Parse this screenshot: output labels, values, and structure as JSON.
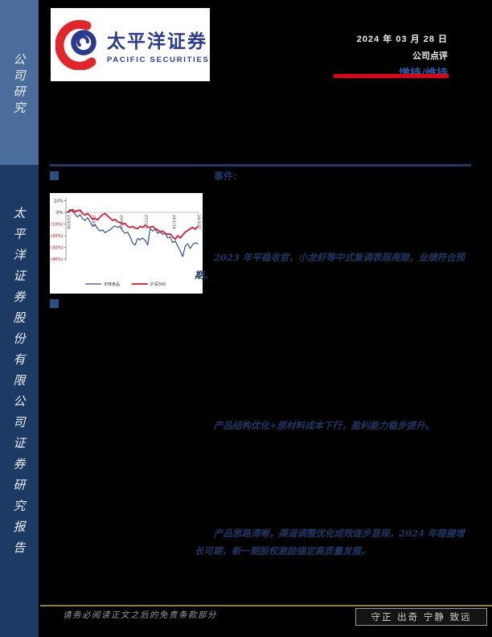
{
  "colors": {
    "red": "#e60012",
    "logoBlue": "#2b3a8e",
    "ratingBlue": "#2a5caa",
    "navy": "#1f3864",
    "bulletBlue": "#2d4f7f",
    "sidebarLight": "#4a6d9d",
    "sidebarDark": "#1c3a63",
    "gold": "#8e7c42",
    "footerGray": "#9c9c9c"
  },
  "sidebar": {
    "top_label": "公司研究",
    "bottom_label": "太平洋证券股份有限公司证券研究报告"
  },
  "logo": {
    "cn": "太平洋证券",
    "en": "PACIFIC SECURITIES"
  },
  "header": {
    "date": "2024 年 03 月 28 日",
    "report_type": "公司点评",
    "rating": "增持/维持"
  },
  "sections": {
    "event_label": "事件:"
  },
  "highlights": [
    "2023 年平稳收官，小龙虾等中式复调表现亮眼，业绩符合预期。",
    "产品结构优化+原材料成本下行，盈利能力稳步提升。",
    "产品思路清晰，渠道调整优化成效逐步显现，2024 年稳健增长可期，新一期股权激励锚定高质量发展。"
  ],
  "chart_data": {
    "type": "line",
    "title": "",
    "xlabel": "",
    "ylabel": "",
    "ylim": [
      -40,
      10
    ],
    "grid": false,
    "legend_position": "bottom",
    "y_ticks": [
      10,
      0,
      -10,
      -20,
      -30,
      -40
    ],
    "neg_label_color": "#c00000",
    "x_tick_labels": [
      "23/3/28",
      "23/6/8",
      "23/8/21",
      "23/11/2",
      "24/1/14",
      "24/3/27"
    ],
    "x_tick_indices": [
      0,
      10,
      21,
      31,
      42,
      52
    ],
    "series": [
      {
        "name": "天味食品",
        "color": "#2e5596",
        "width": 1.2,
        "values": [
          0,
          2.5,
          1,
          -1.5,
          -4,
          -2,
          -5.5,
          -7,
          -4.5,
          -8,
          -12,
          -10.5,
          -14,
          -16,
          -15,
          -17.5,
          -16,
          -15,
          -13,
          -11.5,
          -13,
          -12,
          -16,
          -18,
          -17,
          -21,
          -26.5,
          -28,
          -22.5,
          -23.5,
          -22,
          -24,
          -28,
          -14,
          -16,
          -14.5,
          -18,
          -16.5,
          -19,
          -18,
          -22,
          -21,
          -26,
          -24.5,
          -29,
          -33,
          -38,
          -29,
          -27,
          -31,
          -27.5,
          -26,
          -27
        ]
      },
      {
        "name": "沪深300",
        "color": "#e3112b",
        "width": 1.7,
        "values": [
          0,
          1,
          2.5,
          0.5,
          1.5,
          2,
          -1,
          -2.5,
          -1,
          -3,
          -6,
          -5,
          -6.5,
          -4,
          -2,
          -1,
          -3,
          -5,
          -7,
          -6,
          -8,
          -9,
          -10,
          -9.5,
          -12,
          -13,
          -12,
          -13.5,
          -14,
          -12,
          -13,
          -11,
          -12.5,
          -13,
          -12,
          -14,
          -15,
          -17,
          -16,
          -18,
          -19,
          -18.5,
          -21,
          -23,
          -20,
          -22,
          -19.5,
          -17,
          -15.5,
          -14,
          -13,
          -14.5,
          -12
        ]
      }
    ]
  },
  "footer": {
    "disclaimer": "请务必阅读正文之后的免责条款部分",
    "motto": "守正 出奇 宁静 致远"
  }
}
